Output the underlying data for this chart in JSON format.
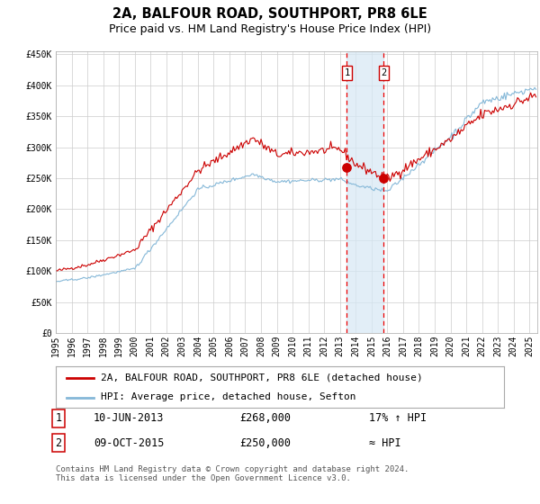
{
  "title": "2A, BALFOUR ROAD, SOUTHPORT, PR8 6LE",
  "subtitle": "Price paid vs. HM Land Registry's House Price Index (HPI)",
  "ylabel_ticks": [
    "£0",
    "£50K",
    "£100K",
    "£150K",
    "£200K",
    "£250K",
    "£300K",
    "£350K",
    "£400K",
    "£450K"
  ],
  "ytick_values": [
    0,
    50000,
    100000,
    150000,
    200000,
    250000,
    300000,
    350000,
    400000,
    450000
  ],
  "ylim": [
    0,
    455000
  ],
  "year_start": 1995,
  "year_end": 2025,
  "sale1_date": 2013.44,
  "sale1_price": 268000,
  "sale1_label": "1",
  "sale2_date": 2015.77,
  "sale2_price": 250000,
  "sale2_label": "2",
  "red_line_color": "#cc0000",
  "blue_line_color": "#85b8d8",
  "shade_color": "#d6e8f5",
  "dashed_line_color": "#ee0000",
  "marker_color": "#cc0000",
  "legend1": "2A, BALFOUR ROAD, SOUTHPORT, PR8 6LE (detached house)",
  "legend2": "HPI: Average price, detached house, Sefton",
  "table_row1": [
    "1",
    "10-JUN-2013",
    "£268,000",
    "17% ↑ HPI"
  ],
  "table_row2": [
    "2",
    "09-OCT-2015",
    "£250,000",
    "≈ HPI"
  ],
  "footnote": "Contains HM Land Registry data © Crown copyright and database right 2024.\nThis data is licensed under the Open Government Licence v3.0.",
  "background_color": "#ffffff",
  "grid_color": "#cccccc",
  "title_fontsize": 10.5,
  "subtitle_fontsize": 9,
  "tick_fontsize": 7,
  "legend_fontsize": 8,
  "table_fontsize": 8.5
}
